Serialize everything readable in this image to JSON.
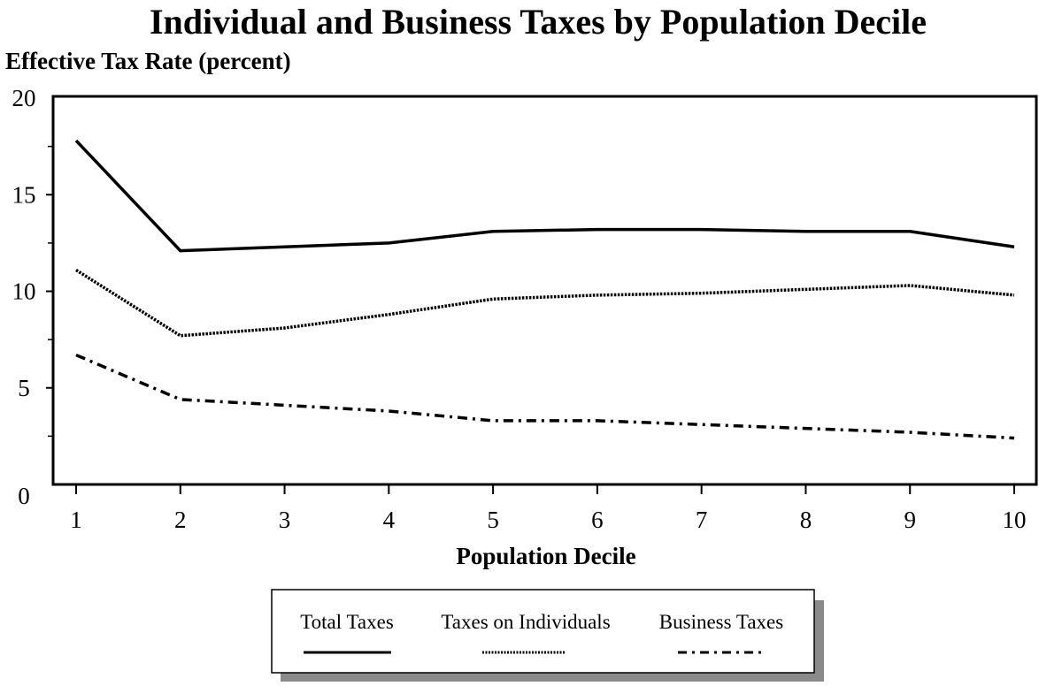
{
  "chart_data": {
    "type": "line",
    "title": "Individual and Business Taxes by Population Decile",
    "ylabel": "Effective Tax Rate (percent)",
    "xlabel": "Population Decile",
    "x": [
      1,
      2,
      3,
      4,
      5,
      6,
      7,
      8,
      9,
      10
    ],
    "xlim": [
      1,
      10
    ],
    "ylim": [
      0,
      20
    ],
    "y_ticks": [
      0,
      5,
      10,
      15,
      20
    ],
    "grid": false,
    "legend_position": "bottom-center",
    "series": [
      {
        "name": "Total Taxes",
        "style": "solid",
        "color": "#000000",
        "values": [
          17.8,
          12.1,
          12.3,
          12.5,
          13.1,
          13.2,
          13.2,
          13.1,
          13.1,
          12.3
        ]
      },
      {
        "name": "Taxes on Individuals",
        "style": "dotted",
        "color": "#000000",
        "values": [
          11.1,
          7.7,
          8.1,
          8.8,
          9.6,
          9.8,
          9.9,
          10.1,
          10.3,
          9.8
        ]
      },
      {
        "name": "Business Taxes",
        "style": "dashdot",
        "color": "#000000",
        "values": [
          6.7,
          4.4,
          4.1,
          3.8,
          3.3,
          3.3,
          3.1,
          2.9,
          2.7,
          2.4
        ]
      }
    ]
  }
}
